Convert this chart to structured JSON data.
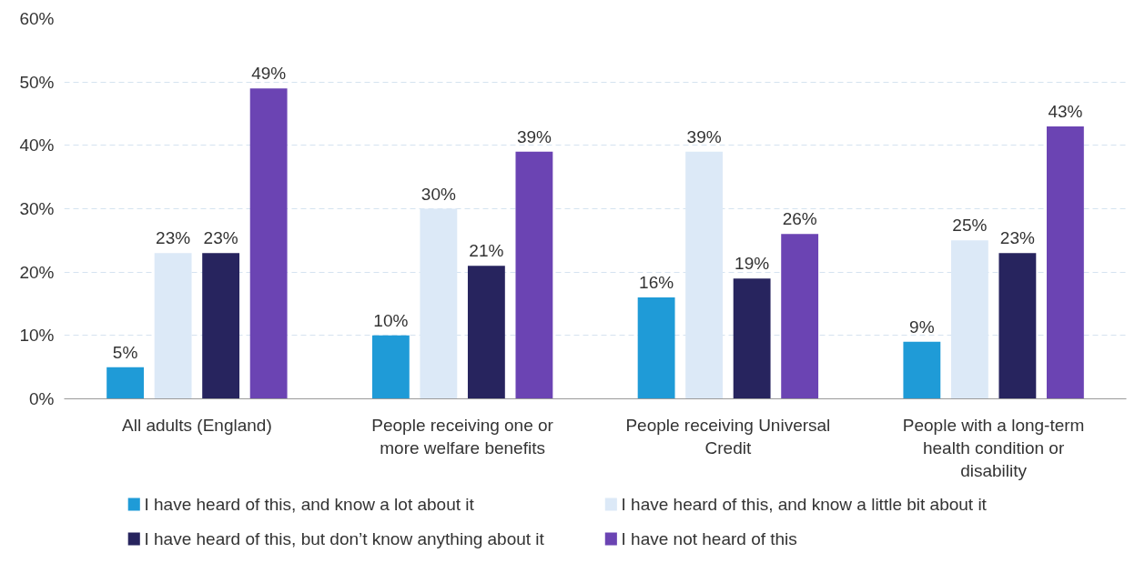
{
  "chart_data": {
    "type": "bar",
    "categories": [
      "All adults (England)",
      "People receiving one or more welfare benefits",
      "People receiving Universal Credit",
      "People with a long-term health condition or disability"
    ],
    "series": [
      {
        "name": "I have heard of this, and know a lot about it",
        "color": "#1f9bd7",
        "values": [
          5,
          10,
          16,
          9
        ],
        "value_labels": [
          "5%",
          "10%",
          "16%",
          "9%"
        ]
      },
      {
        "name": "I have heard of this, and know a little bit about it",
        "color": "#dce9f7",
        "values": [
          23,
          30,
          39,
          25
        ],
        "value_labels": [
          "23%",
          "30%",
          "39%",
          "25%"
        ]
      },
      {
        "name": "I have heard of this, but don’t know anything about it",
        "color": "#27245e",
        "values": [
          23,
          21,
          19,
          23
        ],
        "value_labels": [
          "23%",
          "21%",
          "19%",
          "23%"
        ]
      },
      {
        "name": "I have not heard of this",
        "color": "#6b44b3",
        "values": [
          49,
          39,
          26,
          43
        ],
        "value_labels": [
          "49%",
          "39%",
          "26%",
          "43%"
        ]
      }
    ],
    "ylim": [
      0,
      60
    ],
    "yticks": [
      {
        "value": 0,
        "label": "0%"
      },
      {
        "value": 10,
        "label": "10%"
      },
      {
        "value": 20,
        "label": "20%"
      },
      {
        "value": 30,
        "label": "30%"
      },
      {
        "value": 40,
        "label": "40%"
      },
      {
        "value": 50,
        "label": "50%"
      },
      {
        "value": 60,
        "label": "60%"
      }
    ],
    "grid": "y",
    "legend": "bottom"
  }
}
